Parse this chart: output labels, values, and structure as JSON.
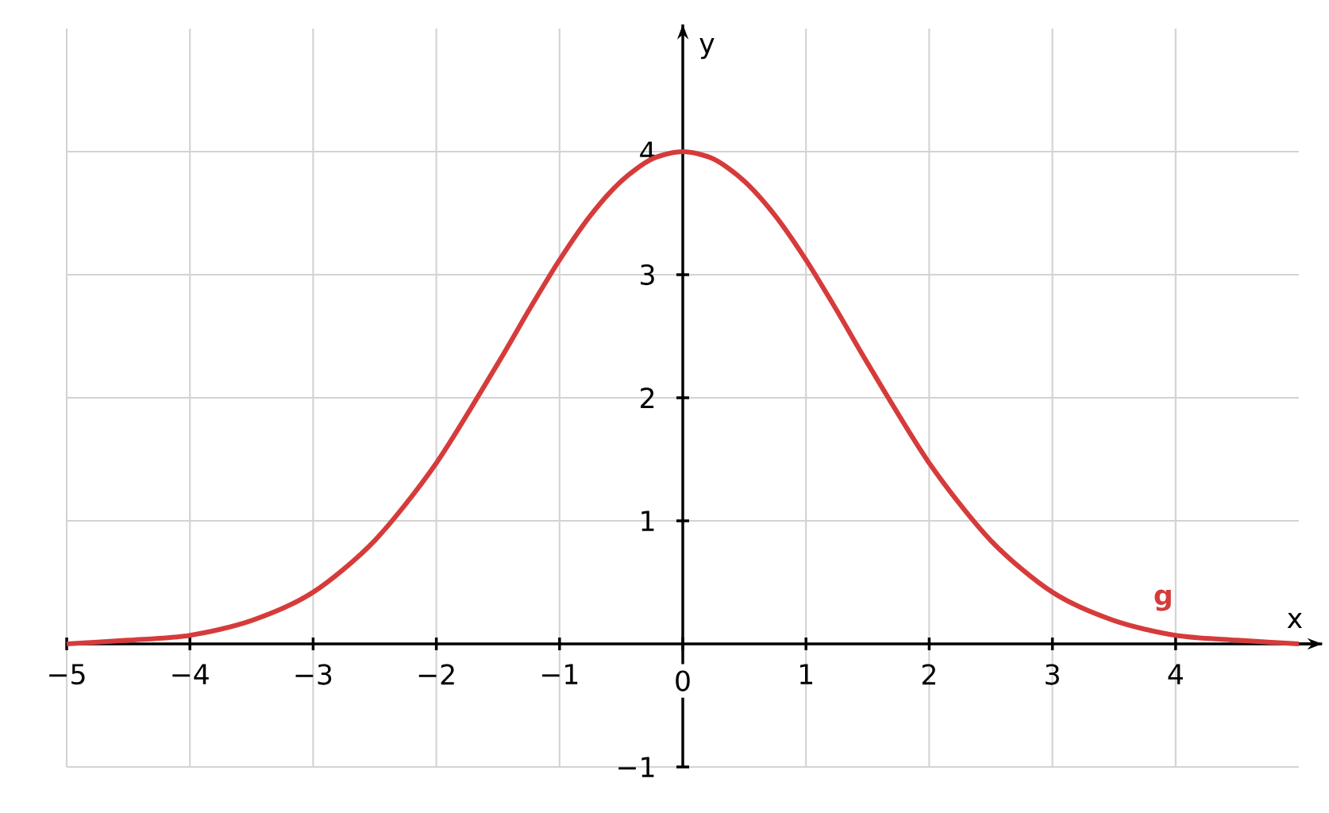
{
  "chart_data": {
    "type": "line",
    "xlabel": "x",
    "ylabel": "y",
    "xlim": [
      -5,
      5
    ],
    "ylim": [
      -1,
      5
    ],
    "xticks": [
      {
        "value": -5,
        "label": "−5"
      },
      {
        "value": -4,
        "label": "−4"
      },
      {
        "value": -3,
        "label": "−3"
      },
      {
        "value": -2,
        "label": "−2"
      },
      {
        "value": -1,
        "label": "−1"
      },
      {
        "value": 0,
        "label": "0"
      },
      1,
      2,
      3,
      4
    ],
    "yticks": [
      {
        "value": -1,
        "label": "−1"
      },
      1,
      2,
      3,
      4
    ],
    "grid": true,
    "x": [
      -5,
      -4.5,
      -4,
      -3.5,
      -3,
      -2.5,
      -2,
      -1.5,
      -1.25,
      -1,
      -0.75,
      -0.5,
      -0.25,
      0,
      0.25,
      0.5,
      0.75,
      1,
      1.25,
      1.5,
      2,
      2.5,
      3,
      3.5,
      4,
      4.5,
      5
    ],
    "series": [
      {
        "name": "g",
        "color": "#d63b3b",
        "values": [
          0.0,
          0.03,
          0.07,
          0.19,
          0.42,
          0.84,
          1.47,
          2.28,
          2.71,
          3.12,
          3.48,
          3.76,
          3.94,
          4.0,
          3.94,
          3.76,
          3.48,
          3.12,
          2.71,
          2.28,
          1.47,
          0.84,
          0.42,
          0.19,
          0.07,
          0.03,
          0.0
        ]
      }
    ]
  }
}
